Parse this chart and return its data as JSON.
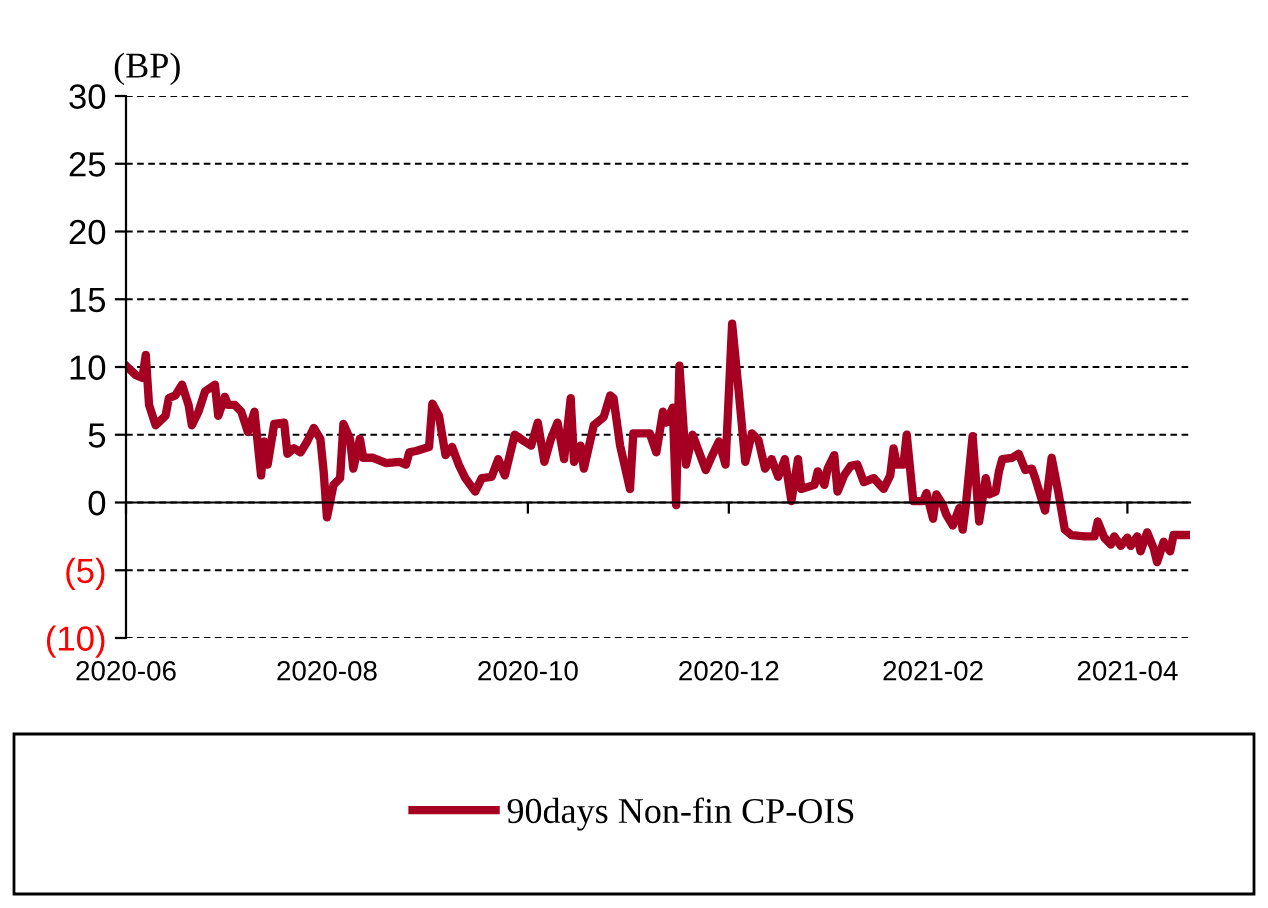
{
  "chart_data": {
    "type": "line",
    "ylabel": "(BP)",
    "x": [
      "2020-06-01",
      "2020-06-04",
      "2020-06-06",
      "2020-06-07",
      "2020-06-08",
      "2020-06-10",
      "2020-06-13",
      "2020-06-14",
      "2020-06-16",
      "2020-06-18",
      "2020-06-20",
      "2020-06-21",
      "2020-06-23",
      "2020-06-25",
      "2020-06-28",
      "2020-06-29",
      "2020-07-01",
      "2020-07-02",
      "2020-07-04",
      "2020-07-06",
      "2020-07-08",
      "2020-07-10",
      "2020-07-12",
      "2020-07-13",
      "2020-07-14",
      "2020-07-16",
      "2020-07-19",
      "2020-07-20",
      "2020-07-22",
      "2020-07-24",
      "2020-07-26",
      "2020-07-28",
      "2020-07-30",
      "2020-07-31",
      "2020-08-01",
      "2020-08-03",
      "2020-08-05",
      "2020-08-06",
      "2020-08-08",
      "2020-08-09",
      "2020-08-11",
      "2020-08-12",
      "2020-08-15",
      "2020-08-19",
      "2020-08-23",
      "2020-08-25",
      "2020-08-26",
      "2020-08-28",
      "2020-09-01",
      "2020-09-02",
      "2020-09-04",
      "2020-09-06",
      "2020-09-08",
      "2020-09-10",
      "2020-09-12",
      "2020-09-15",
      "2020-09-17",
      "2020-09-20",
      "2020-09-22",
      "2020-09-24",
      "2020-09-27",
      "2020-09-30",
      "2020-10-02",
      "2020-10-04",
      "2020-10-06",
      "2020-10-08",
      "2020-10-10",
      "2020-10-12",
      "2020-10-14",
      "2020-10-15",
      "2020-10-17",
      "2020-10-18",
      "2020-10-21",
      "2020-10-24",
      "2020-10-26",
      "2020-10-27",
      "2020-10-29",
      "2020-11-01",
      "2020-11-02",
      "2020-11-07",
      "2020-11-09",
      "2020-11-11",
      "2020-11-12",
      "2020-11-14",
      "2020-11-15",
      "2020-11-16",
      "2020-11-18",
      "2020-11-20",
      "2020-11-22",
      "2020-11-24",
      "2020-11-26",
      "2020-11-28",
      "2020-11-30",
      "2020-12-02",
      "2020-12-04",
      "2020-12-06",
      "2020-12-08",
      "2020-12-10",
      "2020-12-12",
      "2020-12-14",
      "2020-12-16",
      "2020-12-18",
      "2020-12-20",
      "2020-12-22",
      "2020-12-23",
      "2020-12-27",
      "2020-12-28",
      "2020-12-30",
      "2020-12-31",
      "2021-01-02",
      "2021-01-03",
      "2021-01-05",
      "2021-01-07",
      "2021-01-09",
      "2021-01-11",
      "2021-01-14",
      "2021-01-17",
      "2021-01-19",
      "2021-01-20",
      "2021-01-21",
      "2021-01-23",
      "2021-01-24",
      "2021-01-26",
      "2021-01-29",
      "2021-01-30",
      "2021-02-01",
      "2021-02-02",
      "2021-02-04",
      "2021-02-05",
      "2021-02-07",
      "2021-02-09",
      "2021-02-10",
      "2021-02-11",
      "2021-02-13",
      "2021-02-15",
      "2021-02-17",
      "2021-02-18",
      "2021-02-20",
      "2021-02-21",
      "2021-02-22",
      "2021-02-25",
      "2021-02-27",
      "2021-03-01",
      "2021-03-03",
      "2021-03-04",
      "2021-03-07",
      "2021-03-09",
      "2021-03-11",
      "2021-03-13",
      "2021-03-15",
      "2021-03-19",
      "2021-03-22",
      "2021-03-23",
      "2021-03-25",
      "2021-03-27",
      "2021-03-28",
      "2021-03-30",
      "2021-04-01",
      "2021-04-02",
      "2021-04-04",
      "2021-04-05",
      "2021-04-07",
      "2021-04-09",
      "2021-04-10",
      "2021-04-12",
      "2021-04-14",
      "2021-04-15",
      "2021-04-18",
      "2021-04-20"
    ],
    "series": [
      {
        "name": "90days Non-fin CP-OIS",
        "color": "#a50021",
        "values": [
          10.1,
          9.4,
          9.2,
          10.9,
          7.2,
          5.7,
          6.4,
          7.7,
          7.9,
          8.7,
          7.2,
          5.7,
          6.7,
          8.2,
          8.7,
          6.4,
          7.8,
          7.2,
          7.2,
          6.7,
          5.2,
          6.7,
          2.0,
          4.5,
          2.8,
          5.8,
          5.9,
          3.6,
          4.0,
          3.7,
          4.5,
          5.5,
          4.7,
          2.3,
          -1.1,
          1.3,
          1.8,
          5.8,
          4.7,
          2.5,
          4.7,
          3.3,
          3.3,
          2.9,
          3.0,
          2.8,
          3.7,
          3.8,
          4.1,
          7.3,
          6.4,
          3.5,
          4.1,
          2.8,
          1.8,
          0.8,
          1.8,
          1.9,
          3.2,
          2.0,
          5.0,
          4.5,
          4.2,
          5.9,
          3.0,
          4.7,
          5.9,
          3.2,
          7.7,
          3.0,
          4.2,
          2.5,
          5.7,
          6.3,
          7.9,
          7.7,
          4.2,
          1.0,
          5.1,
          5.1,
          3.7,
          6.7,
          5.9,
          7.0,
          -0.2,
          10.1,
          2.8,
          5.0,
          3.7,
          2.4,
          3.5,
          4.5,
          2.8,
          13.2,
          8.2,
          3.0,
          5.1,
          4.6,
          2.5,
          3.2,
          1.9,
          3.2,
          0.1,
          3.2,
          1.0,
          1.3,
          2.3,
          1.3,
          2.5,
          3.5,
          0.8,
          2.0,
          2.7,
          2.8,
          1.5,
          1.8,
          1.0,
          2.0,
          4.0,
          2.8,
          2.8,
          5.0,
          0.1,
          0.1,
          0.7,
          -1.2,
          0.6,
          -0.2,
          -0.9,
          -1.7,
          -0.4,
          -2.0,
          -0.1,
          4.9,
          -1.4,
          1.8,
          0.6,
          0.8,
          2.3,
          3.2,
          3.3,
          3.6,
          2.4,
          2.5,
          1.8,
          -0.6,
          3.3,
          0.8,
          -2.0,
          -2.4,
          -2.5,
          -2.5,
          -1.4,
          -2.6,
          -3.1,
          -2.5,
          -3.2,
          -2.6,
          -3.2,
          -2.5,
          -3.6,
          -2.2,
          -3.4,
          -4.4,
          -2.9,
          -3.6,
          -2.4,
          -2.4,
          -2.4
        ]
      }
    ],
    "xlim": [
      "2020-06-01",
      "2021-04-20"
    ],
    "xticks": [
      "2020-06",
      "2020-08",
      "2020-10",
      "2020-12",
      "2021-02",
      "2021-04"
    ],
    "ylim": [
      -10,
      30
    ],
    "yticks": [
      {
        "value": -10,
        "label": "(10)"
      },
      {
        "value": -5,
        "label": "(5)"
      },
      0,
      5,
      10,
      15,
      20,
      25,
      30
    ],
    "grid": "y",
    "legend": "bottom",
    "line_style": "solid"
  }
}
